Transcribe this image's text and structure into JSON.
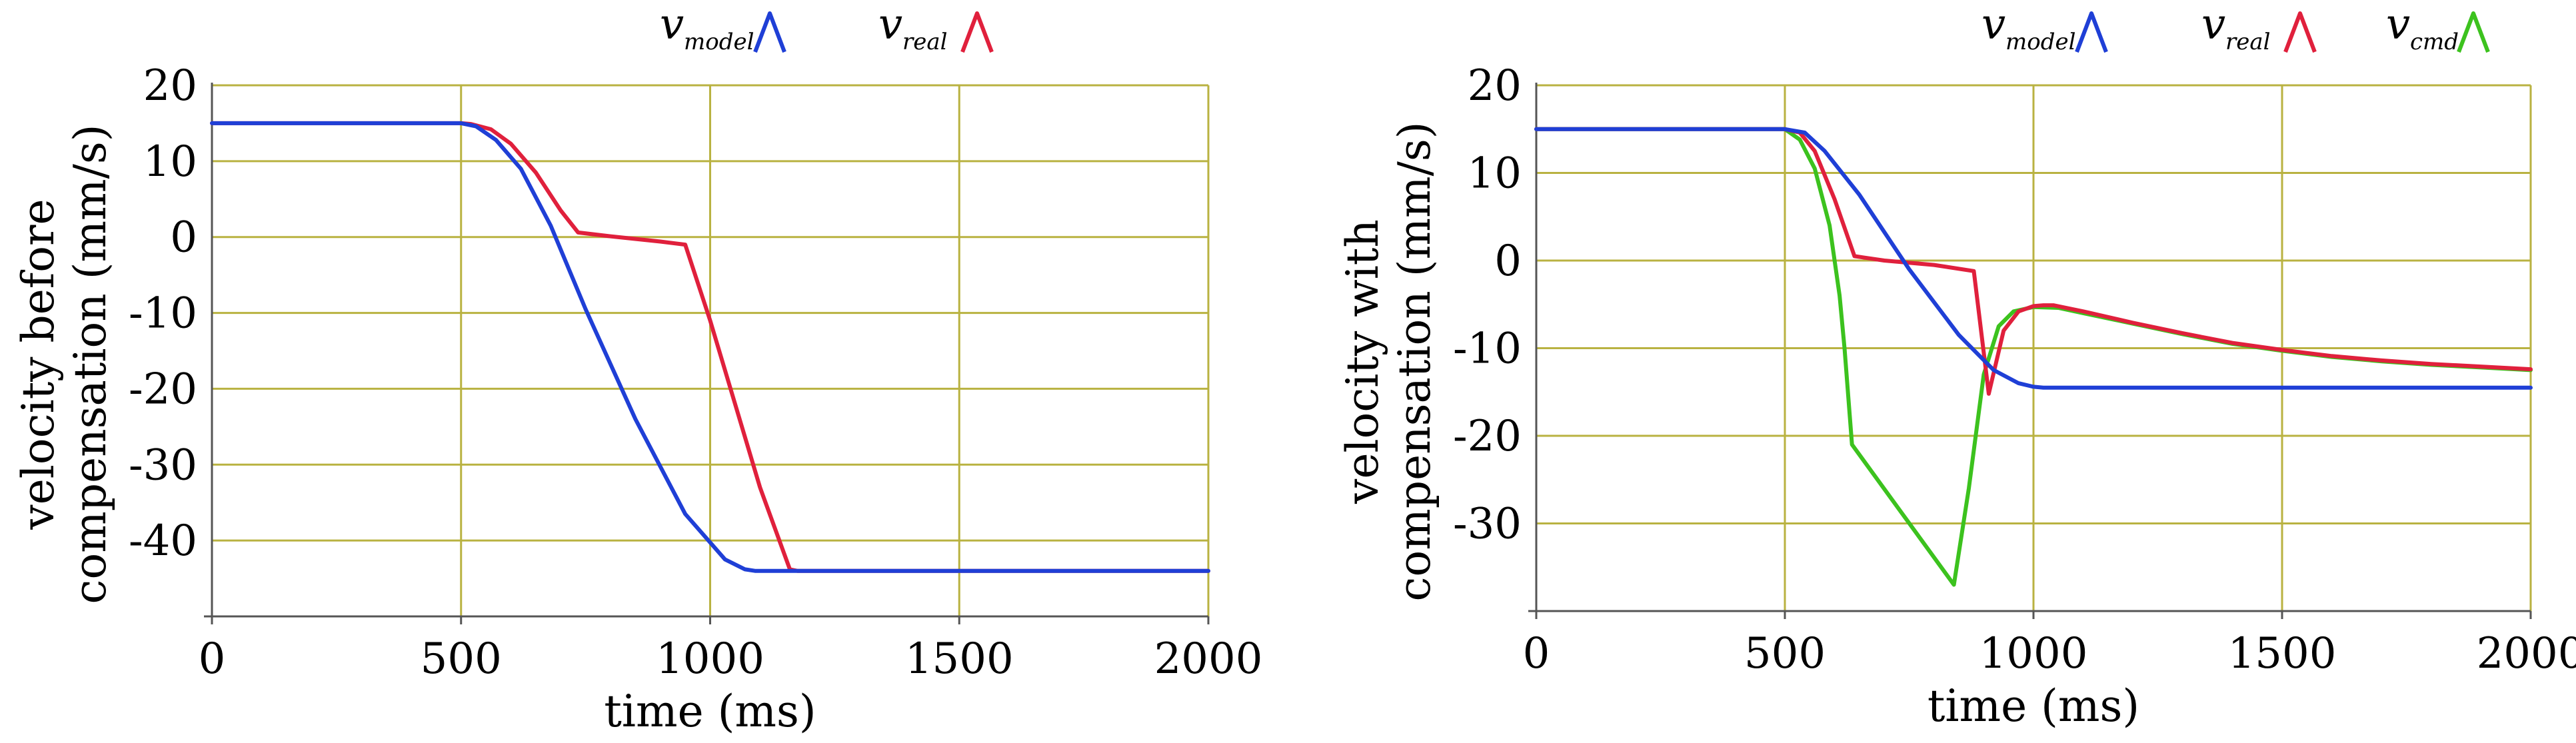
{
  "colors": {
    "grid": "#b9b241",
    "axis": "#555555",
    "model": "#1f3fd6",
    "real": "#e0203c",
    "cmd": "#3cc21e"
  },
  "chart_data": [
    {
      "type": "line",
      "xlabel": "time (ms)",
      "ylabel": [
        "velocity before",
        "compensation (mm/s)"
      ],
      "xlim": [
        0,
        2000
      ],
      "ylim": [
        -50,
        20
      ],
      "xticks": [
        0,
        500,
        1000,
        1500,
        2000
      ],
      "yticks": [
        20,
        10,
        0,
        -10,
        -20,
        -30,
        -40
      ],
      "xtick_labels": [
        "0",
        "500",
        "1000",
        "1500",
        "2000"
      ],
      "ytick_labels": [
        "20",
        "10",
        "0",
        "-10",
        "-20",
        "-30",
        "-40"
      ],
      "grid": true,
      "legend": [
        {
          "base": "v",
          "sub": "model",
          "color": "#1f3fd6"
        },
        {
          "base": "v",
          "sub": "real",
          "color": "#e0203c"
        }
      ],
      "series": [
        {
          "key": "real",
          "color": "#e0203c",
          "x": [
            0,
            500,
            520,
            560,
            600,
            650,
            700,
            735,
            800,
            900,
            950,
            1000,
            1050,
            1100,
            1160,
            1175,
            2000
          ],
          "y": [
            15,
            15,
            14.9,
            14.2,
            12.3,
            8.5,
            3.5,
            0.6,
            0.1,
            -0.6,
            -1.0,
            -11,
            -22,
            -33,
            -43.8,
            -44,
            -44
          ]
        },
        {
          "key": "model",
          "color": "#1f3fd6",
          "x": [
            0,
            500,
            530,
            570,
            620,
            680,
            750,
            850,
            950,
            1030,
            1070,
            1090,
            1110,
            2000
          ],
          "y": [
            15,
            15,
            14.6,
            12.8,
            9.0,
            1.5,
            -9.5,
            -24,
            -36.5,
            -42.5,
            -43.8,
            -44,
            -44,
            -44
          ]
        }
      ]
    },
    {
      "type": "line",
      "xlabel": "time (ms)",
      "ylabel": [
        "velocity with",
        "compensation (mm/s)"
      ],
      "xlim": [
        0,
        2000
      ],
      "ylim": [
        -40,
        20
      ],
      "xticks": [
        0,
        500,
        1000,
        1500,
        2000
      ],
      "yticks": [
        20,
        10,
        0,
        -10,
        -20,
        -30
      ],
      "xtick_labels": [
        "0",
        "500",
        "1000",
        "1500",
        "2000"
      ],
      "ytick_labels": [
        "20",
        "10",
        "0",
        "-10",
        "-20",
        "-30"
      ],
      "grid": true,
      "legend": [
        {
          "base": "v",
          "sub": "model",
          "color": "#1f3fd6"
        },
        {
          "base": "v",
          "sub": "real",
          "color": "#e0203c"
        },
        {
          "base": "v",
          "sub": "cmd",
          "color": "#3cc21e"
        }
      ],
      "series": [
        {
          "key": "cmd",
          "color": "#3cc21e",
          "x": [
            0,
            500,
            530,
            560,
            590,
            610,
            620,
            635,
            840,
            870,
            900,
            930,
            960,
            1000,
            1050,
            1100,
            1200,
            1300,
            1400,
            1500,
            1600,
            1700,
            1800,
            1900,
            2000
          ],
          "y": [
            15,
            15,
            13.8,
            10.5,
            4,
            -4,
            -10,
            -21,
            -37,
            -26,
            -13,
            -7.5,
            -5.8,
            -5.3,
            -5.4,
            -6.0,
            -7.2,
            -8.4,
            -9.5,
            -10.3,
            -11.0,
            -11.5,
            -11.9,
            -12.2,
            -12.5
          ]
        },
        {
          "key": "real",
          "color": "#e0203c",
          "x": [
            0,
            500,
            530,
            560,
            600,
            640,
            700,
            800,
            880,
            910,
            940,
            970,
            1000,
            1020,
            1040,
            1100,
            1200,
            1300,
            1400,
            1500,
            1600,
            1700,
            1800,
            1900,
            2000
          ],
          "y": [
            15,
            15,
            14.6,
            12.5,
            7,
            0.5,
            0,
            -0.5,
            -1.2,
            -15.2,
            -8,
            -5.8,
            -5.2,
            -5.1,
            -5.1,
            -5.8,
            -7.1,
            -8.3,
            -9.4,
            -10.2,
            -10.9,
            -11.4,
            -11.8,
            -12.1,
            -12.4
          ]
        },
        {
          "key": "model",
          "color": "#1f3fd6",
          "x": [
            0,
            500,
            540,
            580,
            650,
            750,
            850,
            920,
            970,
            1000,
            1020,
            1040,
            2000
          ],
          "y": [
            15,
            15,
            14.6,
            12.5,
            7.5,
            -1.0,
            -8.5,
            -12.5,
            -14.0,
            -14.4,
            -14.5,
            -14.5,
            -14.5
          ]
        }
      ]
    }
  ]
}
